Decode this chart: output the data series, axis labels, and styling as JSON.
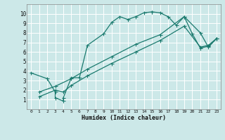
{
  "title": "",
  "xlabel": "Humidex (Indice chaleur)",
  "bg_color": "#cce8e8",
  "grid_color": "#b0d0d0",
  "line_color": "#1a7a6e",
  "xlim": [
    -0.5,
    23.5
  ],
  "ylim": [
    0,
    11
  ],
  "xticks": [
    0,
    1,
    2,
    3,
    4,
    5,
    6,
    7,
    8,
    9,
    10,
    11,
    12,
    13,
    14,
    15,
    16,
    17,
    18,
    19,
    20,
    21,
    22,
    23
  ],
  "yticks": [
    1,
    2,
    3,
    4,
    5,
    6,
    7,
    8,
    9,
    10
  ],
  "curve1_x": [
    0,
    2,
    3,
    3,
    4,
    4,
    5,
    6,
    7,
    9,
    10,
    11,
    12,
    13,
    14,
    15,
    15,
    16,
    17,
    18,
    19,
    20,
    21,
    22,
    23
  ],
  "curve1_y": [
    3.8,
    3.2,
    1.8,
    1.2,
    0.85,
    1.2,
    3.3,
    3.3,
    6.7,
    7.9,
    9.1,
    9.7,
    9.4,
    9.7,
    10.1,
    10.2,
    10.2,
    10.1,
    9.7,
    8.8,
    9.7,
    7.9,
    6.4,
    6.6,
    7.4
  ],
  "curve2_x": [
    1,
    3,
    4,
    5,
    7,
    10,
    13,
    16,
    19,
    21,
    22,
    23
  ],
  "curve2_y": [
    1.3,
    2.0,
    1.8,
    2.5,
    3.5,
    4.8,
    6.0,
    7.2,
    8.7,
    6.5,
    6.7,
    7.4
  ],
  "curve3_x": [
    1,
    3,
    5,
    7,
    10,
    13,
    16,
    19,
    21,
    22,
    23
  ],
  "curve3_y": [
    1.8,
    2.4,
    3.2,
    4.2,
    5.5,
    6.8,
    7.8,
    9.7,
    8.0,
    6.5,
    7.4
  ]
}
